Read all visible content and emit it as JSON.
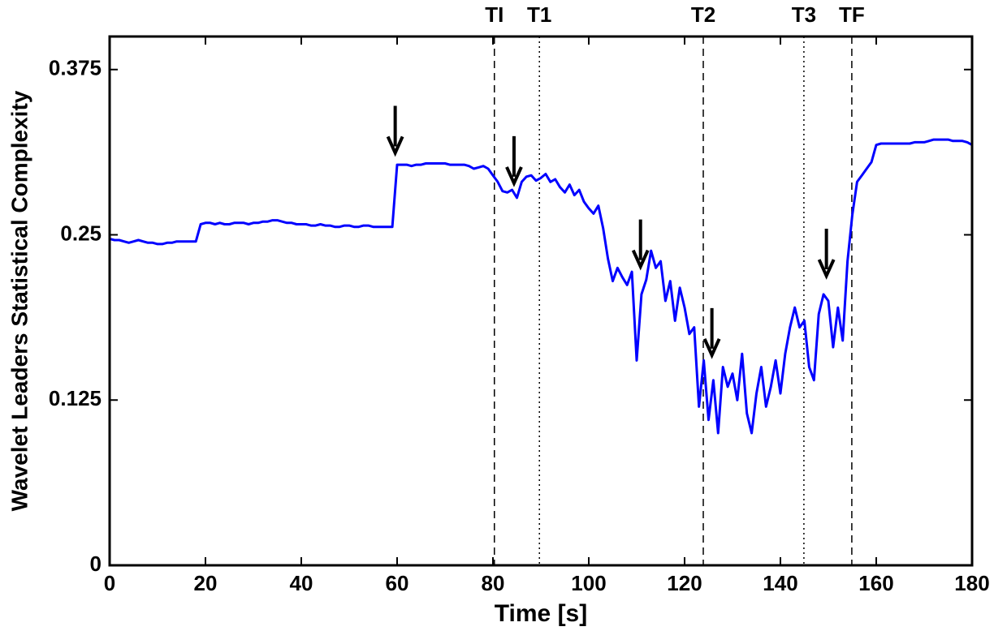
{
  "chart_data": {
    "type": "line",
    "xlabel": "Time [s]",
    "ylabel": "Wavelet Leaders Statistical Complexity",
    "color": "#0000ff",
    "x": [
      0,
      1,
      2,
      3,
      4,
      5,
      6,
      7,
      8,
      9,
      10,
      11,
      12,
      13,
      14,
      15,
      16,
      17,
      18,
      19,
      20,
      21,
      22,
      23,
      24,
      25,
      26,
      27,
      28,
      29,
      30,
      31,
      32,
      33,
      34,
      35,
      36,
      37,
      38,
      39,
      40,
      41,
      42,
      43,
      44,
      45,
      46,
      47,
      48,
      49,
      50,
      51,
      52,
      53,
      54,
      55,
      56,
      57,
      58,
      59,
      60,
      61,
      62,
      63,
      64,
      65,
      66,
      67,
      68,
      69,
      70,
      71,
      72,
      73,
      74,
      75,
      76,
      77,
      78,
      79,
      80,
      81,
      82,
      83,
      84,
      85,
      86,
      87,
      88,
      89,
      90,
      91,
      92,
      93,
      94,
      95,
      96,
      97,
      98,
      99,
      100,
      101,
      102,
      103,
      104,
      105,
      106,
      107,
      108,
      109,
      110,
      111,
      112,
      113,
      114,
      115,
      116,
      117,
      118,
      119,
      120,
      121,
      122,
      123,
      124,
      125,
      126,
      127,
      128,
      129,
      130,
      131,
      132,
      133,
      134,
      135,
      136,
      137,
      138,
      139,
      140,
      141,
      142,
      143,
      144,
      145,
      146,
      147,
      148,
      149,
      150,
      151,
      152,
      153,
      154,
      155,
      156,
      157,
      158,
      159,
      160,
      161,
      162,
      163,
      164,
      165,
      166,
      167,
      168,
      169,
      170,
      171,
      172,
      173,
      174,
      175,
      176,
      177,
      178,
      179,
      180
    ],
    "values": [
      0.247,
      0.246,
      0.246,
      0.245,
      0.244,
      0.245,
      0.246,
      0.245,
      0.244,
      0.244,
      0.243,
      0.243,
      0.244,
      0.244,
      0.245,
      0.245,
      0.245,
      0.245,
      0.245,
      0.258,
      0.259,
      0.259,
      0.258,
      0.259,
      0.258,
      0.258,
      0.259,
      0.259,
      0.259,
      0.258,
      0.259,
      0.259,
      0.26,
      0.26,
      0.261,
      0.261,
      0.26,
      0.259,
      0.259,
      0.258,
      0.258,
      0.258,
      0.257,
      0.257,
      0.258,
      0.257,
      0.257,
      0.256,
      0.256,
      0.257,
      0.257,
      0.256,
      0.256,
      0.257,
      0.257,
      0.256,
      0.256,
      0.256,
      0.256,
      0.256,
      0.303,
      0.303,
      0.303,
      0.302,
      0.303,
      0.303,
      0.304,
      0.304,
      0.304,
      0.304,
      0.304,
      0.303,
      0.303,
      0.303,
      0.303,
      0.302,
      0.3,
      0.301,
      0.302,
      0.3,
      0.295,
      0.29,
      0.283,
      0.282,
      0.284,
      0.278,
      0.29,
      0.294,
      0.295,
      0.291,
      0.293,
      0.296,
      0.29,
      0.292,
      0.286,
      0.282,
      0.288,
      0.28,
      0.284,
      0.275,
      0.27,
      0.266,
      0.272,
      0.255,
      0.232,
      0.215,
      0.225,
      0.218,
      0.212,
      0.222,
      0.155,
      0.205,
      0.216,
      0.238,
      0.225,
      0.23,
      0.2,
      0.215,
      0.185,
      0.21,
      0.195,
      0.175,
      0.18,
      0.12,
      0.155,
      0.11,
      0.14,
      0.1,
      0.15,
      0.135,
      0.145,
      0.125,
      0.16,
      0.115,
      0.1,
      0.13,
      0.15,
      0.12,
      0.135,
      0.155,
      0.13,
      0.16,
      0.18,
      0.195,
      0.18,
      0.185,
      0.15,
      0.14,
      0.19,
      0.205,
      0.2,
      0.165,
      0.195,
      0.17,
      0.23,
      0.265,
      0.29,
      0.295,
      0.3,
      0.305,
      0.318,
      0.319,
      0.319,
      0.319,
      0.319,
      0.319,
      0.319,
      0.319,
      0.32,
      0.32,
      0.32,
      0.321,
      0.322,
      0.322,
      0.322,
      0.322,
      0.321,
      0.321,
      0.321,
      0.32,
      0.318
    ],
    "xlim": [
      0,
      180
    ],
    "xticks": [
      0,
      20,
      40,
      60,
      80,
      100,
      120,
      140,
      160,
      180
    ],
    "ylim": [
      0,
      0.4
    ],
    "yticks": [
      0,
      0.125,
      0.25,
      0.375
    ],
    "markers": [
      {
        "label": "TI",
        "x": 80.3,
        "style": "dashed"
      },
      {
        "label": "T1",
        "x": 89.7,
        "style": "dotted"
      },
      {
        "label": "T2",
        "x": 123.9,
        "style": "dashed"
      },
      {
        "label": "T3",
        "x": 144.9,
        "style": "dotted"
      },
      {
        "label": "TF",
        "x": 154.9,
        "style": "dashed"
      }
    ],
    "arrows": [
      {
        "x": 59.6,
        "y": 0.312
      },
      {
        "x": 84.4,
        "y": 0.289
      },
      {
        "x": 110.8,
        "y": 0.226
      },
      {
        "x": 125.7,
        "y": 0.159
      },
      {
        "x": 149.6,
        "y": 0.219
      }
    ]
  }
}
